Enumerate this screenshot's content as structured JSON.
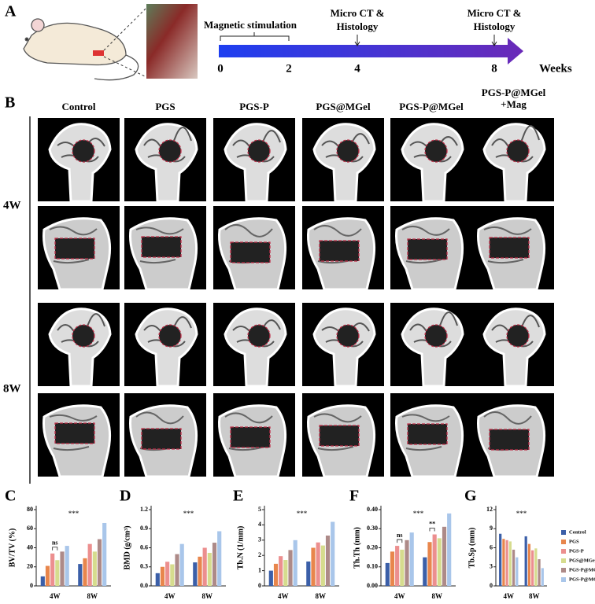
{
  "panel_a": {
    "label": "A",
    "stimulation": "Magnetic stimulation",
    "weeks": [
      0,
      2,
      4,
      8
    ],
    "unit": "Weeks",
    "events": [
      [
        "Micro CT &",
        "Histology"
      ],
      [
        "Micro CT &",
        "Histology"
      ]
    ]
  },
  "panel_b": {
    "label": "B",
    "groups": [
      "Control",
      "PGS",
      "PGS-P",
      "PGS@MGel",
      "PGS-P@MGel",
      "PGS-P@MGel +Mag"
    ],
    "rows": [
      "4W",
      "8W"
    ]
  },
  "chart_data": [
    {
      "type": "bar",
      "label": "C",
      "ylabel": "BV/TV (%)",
      "categories": [
        "4W",
        "8W"
      ],
      "ylim": [
        0,
        80
      ],
      "yticks": [
        0,
        20,
        40,
        60,
        80
      ],
      "annotations": [
        "***",
        "ns"
      ],
      "series": [
        {
          "color": "#3b5fa8",
          "values": [
            10,
            23
          ]
        },
        {
          "color": "#e8864c",
          "values": [
            21,
            29
          ]
        },
        {
          "color": "#ec8f8f",
          "values": [
            34,
            44
          ]
        },
        {
          "color": "#d6dc8e",
          "values": [
            27,
            36
          ]
        },
        {
          "color": "#ad8a88",
          "values": [
            36,
            49
          ]
        },
        {
          "color": "#a9c6ea",
          "values": [
            42,
            66
          ]
        }
      ]
    },
    {
      "type": "bar",
      "label": "D",
      "ylabel": "BMD (g/cm³)",
      "categories": [
        "4W",
        "8W"
      ],
      "ylim": [
        0,
        1.2
      ],
      "yticks": [
        {
          "value": 0,
          "label": "0.0"
        },
        0.3,
        0.6,
        0.9,
        1.2
      ],
      "annotations": [
        "***"
      ],
      "series": [
        {
          "color": "#3b5fa8",
          "values": [
            0.2,
            0.37
          ]
        },
        {
          "color": "#e8864c",
          "values": [
            0.3,
            0.46
          ]
        },
        {
          "color": "#ec8f8f",
          "values": [
            0.38,
            0.6
          ]
        },
        {
          "color": "#d6dc8e",
          "values": [
            0.34,
            0.52
          ]
        },
        {
          "color": "#ad8a88",
          "values": [
            0.5,
            0.68
          ]
        },
        {
          "color": "#a9c6ea",
          "values": [
            0.66,
            0.86
          ]
        }
      ]
    },
    {
      "type": "bar",
      "label": "E",
      "ylabel": "Tb.N (1/mm)",
      "categories": [
        "4W",
        "8W"
      ],
      "ylim": [
        0,
        5
      ],
      "yticks": [
        0,
        1,
        2,
        3,
        4,
        5
      ],
      "annotations": [
        "***"
      ],
      "series": [
        {
          "color": "#3b5fa8",
          "values": [
            1.0,
            1.6
          ]
        },
        {
          "color": "#e8864c",
          "values": [
            1.45,
            2.5
          ]
        },
        {
          "color": "#ec8f8f",
          "values": [
            1.95,
            2.85
          ]
        },
        {
          "color": "#d6dc8e",
          "values": [
            1.7,
            2.65
          ]
        },
        {
          "color": "#ad8a88",
          "values": [
            2.35,
            3.3
          ]
        },
        {
          "color": "#a9c6ea",
          "values": [
            3.0,
            4.2
          ]
        }
      ]
    },
    {
      "type": "bar",
      "label": "F",
      "ylabel": "Th.Th (mm)",
      "categories": [
        "4W",
        "8W"
      ],
      "ylim": [
        0,
        0.4
      ],
      "yticks": [
        {
          "value": 0,
          "label": "0.00"
        },
        {
          "value": 0.1,
          "label": "0.10"
        },
        {
          "value": 0.2,
          "label": "0.20"
        },
        {
          "value": 0.3,
          "label": "0.30"
        },
        {
          "value": 0.4,
          "label": "0.40"
        }
      ],
      "annotations": [
        "***",
        "ns",
        "**"
      ],
      "series": [
        {
          "color": "#3b5fa8",
          "values": [
            0.12,
            0.15
          ]
        },
        {
          "color": "#e8864c",
          "values": [
            0.18,
            0.23
          ]
        },
        {
          "color": "#ec8f8f",
          "values": [
            0.21,
            0.27
          ]
        },
        {
          "color": "#d6dc8e",
          "values": [
            0.19,
            0.25
          ]
        },
        {
          "color": "#ad8a88",
          "values": [
            0.24,
            0.31
          ]
        },
        {
          "color": "#a9c6ea",
          "values": [
            0.28,
            0.38
          ]
        }
      ]
    },
    {
      "type": "bar",
      "label": "G",
      "ylabel": "Tb.Sp (mm)",
      "categories": [
        "4W",
        "8W"
      ],
      "ylim": [
        0,
        12
      ],
      "yticks": [
        0,
        3,
        6,
        9,
        12
      ],
      "annotations": [
        "***"
      ],
      "legend": "right",
      "series": [
        {
          "name": "Control",
          "color": "#3b5fa8",
          "values": [
            8.2,
            7.8
          ]
        },
        {
          "name": "PGS",
          "color": "#e8864c",
          "values": [
            7.4,
            6.6
          ]
        },
        {
          "name": "PGS-P",
          "color": "#ec8f8f",
          "values": [
            7.2,
            5.6
          ]
        },
        {
          "name": "PGS@MGel",
          "color": "#d6dc8e",
          "values": [
            7.0,
            5.9
          ]
        },
        {
          "name": "PGS-P@MGel",
          "color": "#ad8a88",
          "values": [
            5.7,
            4.2
          ]
        },
        {
          "name": "PGS-P@MGel+Mag",
          "color": "#a9c6ea",
          "values": [
            4.5,
            2.8
          ]
        }
      ]
    }
  ]
}
